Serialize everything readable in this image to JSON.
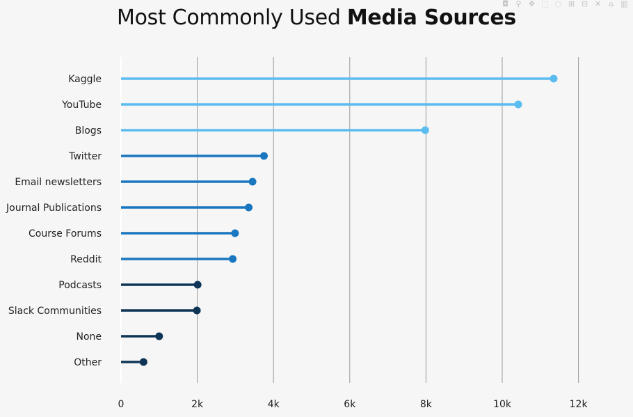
{
  "title": {
    "regular": "Most Commonly Used ",
    "bold": "Media Sources"
  },
  "modebar": {
    "icons": [
      "camera-icon",
      "zoom-icon",
      "pan-icon",
      "box-select-icon",
      "lasso-icon",
      "zoom-in-icon",
      "zoom-out-icon",
      "autoscale-icon",
      "reset-axes-icon",
      "plotly-logo-icon"
    ],
    "glyphs": [
      "◘",
      "⚲",
      "✥",
      "⬚",
      "◌",
      "⊞",
      "⊟",
      "✕",
      "⌂",
      "▥"
    ]
  },
  "colors": {
    "background": "#f6f6f6",
    "gridline": "#9a9a9a",
    "light_blue": "#5bbcf0",
    "mid_blue": "#1a77bf",
    "dark_navy": "#0f3556"
  },
  "chart_data": {
    "type": "lollipop",
    "orientation": "horizontal",
    "categories": [
      "Kaggle",
      "YouTube",
      "Blogs",
      "Twitter",
      "Email newsletters",
      "Journal Publications",
      "Course Forums",
      "Reddit",
      "Podcasts",
      "Slack Communities",
      "None",
      "Other"
    ],
    "values": [
      11350,
      10420,
      7980,
      3750,
      3450,
      3350,
      2990,
      2930,
      2010,
      1990,
      1000,
      590
    ],
    "color_groups": [
      "light_blue",
      "light_blue",
      "light_blue",
      "mid_blue",
      "mid_blue",
      "mid_blue",
      "mid_blue",
      "mid_blue",
      "dark_navy",
      "dark_navy",
      "dark_navy",
      "dark_navy"
    ],
    "xlim": [
      0,
      12500
    ],
    "xticks": [
      0,
      2000,
      4000,
      6000,
      8000,
      10000,
      12000
    ],
    "xtick_labels": [
      "0",
      "2k",
      "4k",
      "6k",
      "8k",
      "10k",
      "12k"
    ],
    "grid": "vertical",
    "xlabel": "",
    "ylabel": ""
  }
}
